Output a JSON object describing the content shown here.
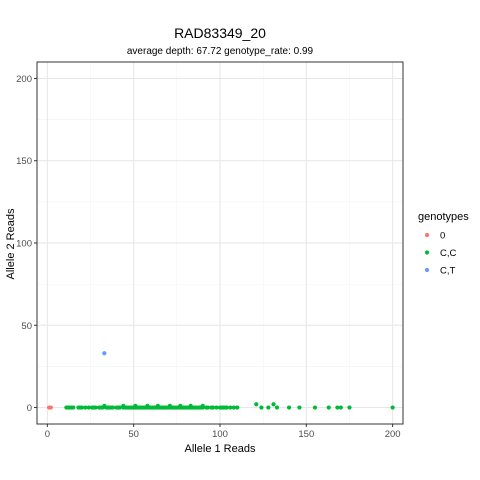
{
  "chart_data": {
    "type": "scatter",
    "title": "RAD83349_20",
    "subtitle": "average depth:  67.72  genotype_rate:  0.99",
    "xlabel": "Allele 1 Reads",
    "ylabel": "Allele 2 Reads",
    "xlim": [
      -6,
      206
    ],
    "ylim": [
      -10,
      210
    ],
    "x_ticks": [
      0,
      50,
      100,
      150,
      200
    ],
    "y_ticks": [
      0,
      50,
      100,
      150,
      200
    ],
    "x_minor": [
      25,
      75,
      125,
      175
    ],
    "y_minor": [
      25,
      75,
      125,
      175
    ],
    "grid": true,
    "legend_placement": "right",
    "legend_title": "genotypes",
    "series": [
      {
        "name": "0",
        "color": "#F8766D",
        "points": [
          [
            1,
            0
          ],
          [
            2,
            0
          ]
        ]
      },
      {
        "name": "C,C",
        "color": "#00BA38",
        "points": [
          [
            11,
            0
          ],
          [
            12,
            0
          ],
          [
            13,
            0
          ],
          [
            14,
            0
          ],
          [
            15,
            0
          ],
          [
            18,
            0
          ],
          [
            19,
            0
          ],
          [
            20,
            0
          ],
          [
            22,
            0
          ],
          [
            24,
            0
          ],
          [
            26,
            0
          ],
          [
            27,
            0
          ],
          [
            28,
            0
          ],
          [
            30,
            0
          ],
          [
            31,
            0
          ],
          [
            32,
            0
          ],
          [
            34,
            0
          ],
          [
            35,
            0
          ],
          [
            36,
            0
          ],
          [
            37,
            0
          ],
          [
            38,
            0
          ],
          [
            40,
            0
          ],
          [
            41,
            0
          ],
          [
            42,
            0
          ],
          [
            44,
            0
          ],
          [
            45,
            0
          ],
          [
            46,
            0
          ],
          [
            47,
            0
          ],
          [
            48,
            0
          ],
          [
            49,
            0
          ],
          [
            50,
            0
          ],
          [
            51,
            0
          ],
          [
            52,
            0
          ],
          [
            53,
            0
          ],
          [
            54,
            0
          ],
          [
            55,
            0
          ],
          [
            56,
            0
          ],
          [
            57,
            0
          ],
          [
            58,
            0
          ],
          [
            59,
            0
          ],
          [
            60,
            0
          ],
          [
            61,
            0
          ],
          [
            62,
            0
          ],
          [
            63,
            0
          ],
          [
            64,
            0
          ],
          [
            65,
            0
          ],
          [
            66,
            0
          ],
          [
            67,
            0
          ],
          [
            68,
            0
          ],
          [
            69,
            0
          ],
          [
            70,
            0
          ],
          [
            71,
            0
          ],
          [
            72,
            0
          ],
          [
            73,
            0
          ],
          [
            74,
            0
          ],
          [
            75,
            0
          ],
          [
            76,
            0
          ],
          [
            77,
            0
          ],
          [
            78,
            0
          ],
          [
            79,
            0
          ],
          [
            80,
            0
          ],
          [
            81,
            0
          ],
          [
            82,
            0
          ],
          [
            83,
            0
          ],
          [
            84,
            0
          ],
          [
            85,
            0
          ],
          [
            86,
            0
          ],
          [
            87,
            0
          ],
          [
            88,
            0
          ],
          [
            89,
            0
          ],
          [
            90,
            0
          ],
          [
            92,
            0
          ],
          [
            93,
            0
          ],
          [
            95,
            0
          ],
          [
            96,
            0
          ],
          [
            98,
            0
          ],
          [
            100,
            0
          ],
          [
            101,
            0
          ],
          [
            102,
            0
          ],
          [
            103,
            0
          ],
          [
            104,
            0
          ],
          [
            106,
            0
          ],
          [
            108,
            0
          ],
          [
            110,
            0
          ],
          [
            121,
            2
          ],
          [
            124,
            0
          ],
          [
            128,
            0
          ],
          [
            131,
            2
          ],
          [
            133,
            0
          ],
          [
            140,
            0
          ],
          [
            146,
            0
          ],
          [
            155,
            0
          ],
          [
            163,
            0
          ],
          [
            168,
            0
          ],
          [
            170,
            0
          ],
          [
            175,
            0
          ],
          [
            200,
            0
          ],
          [
            33,
            1
          ],
          [
            44,
            1
          ],
          [
            51,
            1
          ],
          [
            58,
            1
          ],
          [
            64,
            1
          ],
          [
            71,
            1
          ],
          [
            77,
            1
          ],
          [
            83,
            1
          ],
          [
            90,
            1
          ]
        ]
      },
      {
        "name": "C,T",
        "color": "#619CFF",
        "points": [
          [
            33,
            33
          ]
        ]
      }
    ]
  }
}
